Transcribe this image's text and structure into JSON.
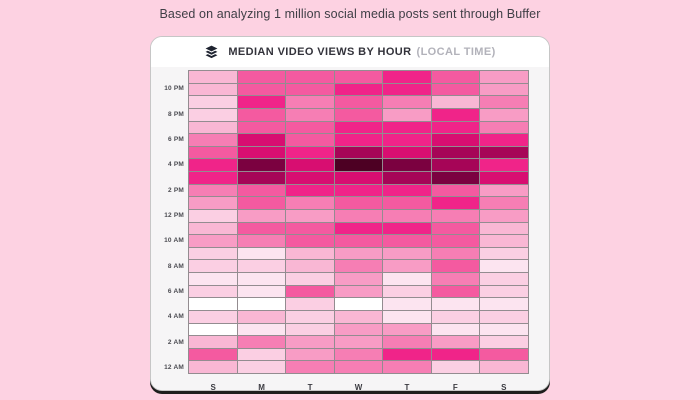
{
  "caption": "Based on analyzing 1 million social media posts sent through Buffer",
  "header": {
    "title": "MEDIAN VIDEO VIEWS BY HOUR",
    "subtitle": "(LOCAL TIME)",
    "logo_icon": "buffer-layers-icon"
  },
  "colors": {
    "page_bg": "#FDD2E2",
    "card_bg": "#FFFFFF",
    "chart_bg": "#F6F5F6",
    "card_border": "#C6C6C6",
    "card_bottom_edge": "#1D1D1D",
    "grid_line": "rgba(66,52,60,0.55)",
    "title": "#33333B",
    "subtitle": "#B2B2BA",
    "caption": "#3F3F46",
    "logo": "#1E2330"
  },
  "chart_data": {
    "type": "heatmap",
    "title": "MEDIAN VIDEO VIEWS BY HOUR (LOCAL TIME)",
    "x_categories": [
      "S",
      "M",
      "T",
      "W",
      "T",
      "F",
      "S"
    ],
    "y_rows_top_to_bottom": [
      "11 PM",
      "10 PM",
      "9 PM",
      "8 PM",
      "7 PM",
      "6 PM",
      "5 PM",
      "4 PM",
      "3 PM",
      "2 PM",
      "1 PM",
      "12 PM",
      "11 AM",
      "10 AM",
      "9 AM",
      "8 AM",
      "7 AM",
      "6 AM",
      "5 AM",
      "4 AM",
      "3 AM",
      "2 AM",
      "1 AM",
      "12 AM"
    ],
    "y_axis_tick_labels": [
      "10 PM",
      "8 PM",
      "6 PM",
      "4 PM",
      "2 PM",
      "12 PM",
      "10 AM",
      "8 AM",
      "6 AM",
      "4 AM",
      "2 AM",
      "12 AM"
    ],
    "value_scale": "relative intensity 0 (lightest) to 11 (darkest), estimated from cell color; no numeric labels shown in image",
    "palette": [
      "#FFFFFF",
      "#FCE4F0",
      "#FBCFE3",
      "#F9B7D4",
      "#F89CC5",
      "#F67EB4",
      "#F45AA0",
      "#F02489",
      "#D80E71",
      "#A60557",
      "#7B0140",
      "#4D0023"
    ],
    "values": [
      [
        3,
        6,
        6,
        6,
        7,
        6,
        4
      ],
      [
        3,
        6,
        6,
        7,
        7,
        6,
        4
      ],
      [
        2,
        7,
        5,
        6,
        5,
        3,
        5
      ],
      [
        2,
        6,
        5,
        6,
        4,
        7,
        4
      ],
      [
        3,
        6,
        6,
        7,
        7,
        7,
        5
      ],
      [
        5,
        8,
        6,
        7,
        7,
        8,
        7
      ],
      [
        6,
        8,
        7,
        9,
        8,
        9,
        9
      ],
      [
        7,
        10,
        8,
        11,
        10,
        9,
        7
      ],
      [
        7,
        9,
        8,
        8,
        9,
        10,
        8
      ],
      [
        5,
        6,
        7,
        7,
        7,
        6,
        4
      ],
      [
        4,
        6,
        5,
        6,
        6,
        7,
        5
      ],
      [
        2,
        4,
        4,
        5,
        5,
        5,
        4
      ],
      [
        3,
        6,
        6,
        7,
        7,
        6,
        3
      ],
      [
        4,
        5,
        6,
        6,
        6,
        6,
        3
      ],
      [
        2,
        1,
        3,
        4,
        4,
        5,
        2
      ],
      [
        2,
        2,
        3,
        5,
        4,
        6,
        1
      ],
      [
        1,
        1,
        2,
        4,
        1,
        5,
        2
      ],
      [
        2,
        1,
        6,
        4,
        2,
        6,
        2
      ],
      [
        0,
        0,
        2,
        0,
        1,
        1,
        1
      ],
      [
        2,
        3,
        2,
        3,
        1,
        2,
        2
      ],
      [
        0,
        1,
        2,
        4,
        4,
        1,
        1
      ],
      [
        3,
        5,
        4,
        4,
        5,
        4,
        2
      ],
      [
        6,
        2,
        4,
        5,
        7,
        7,
        6
      ],
      [
        3,
        2,
        5,
        5,
        5,
        2,
        3
      ]
    ],
    "legend": "none",
    "grid": "on"
  }
}
